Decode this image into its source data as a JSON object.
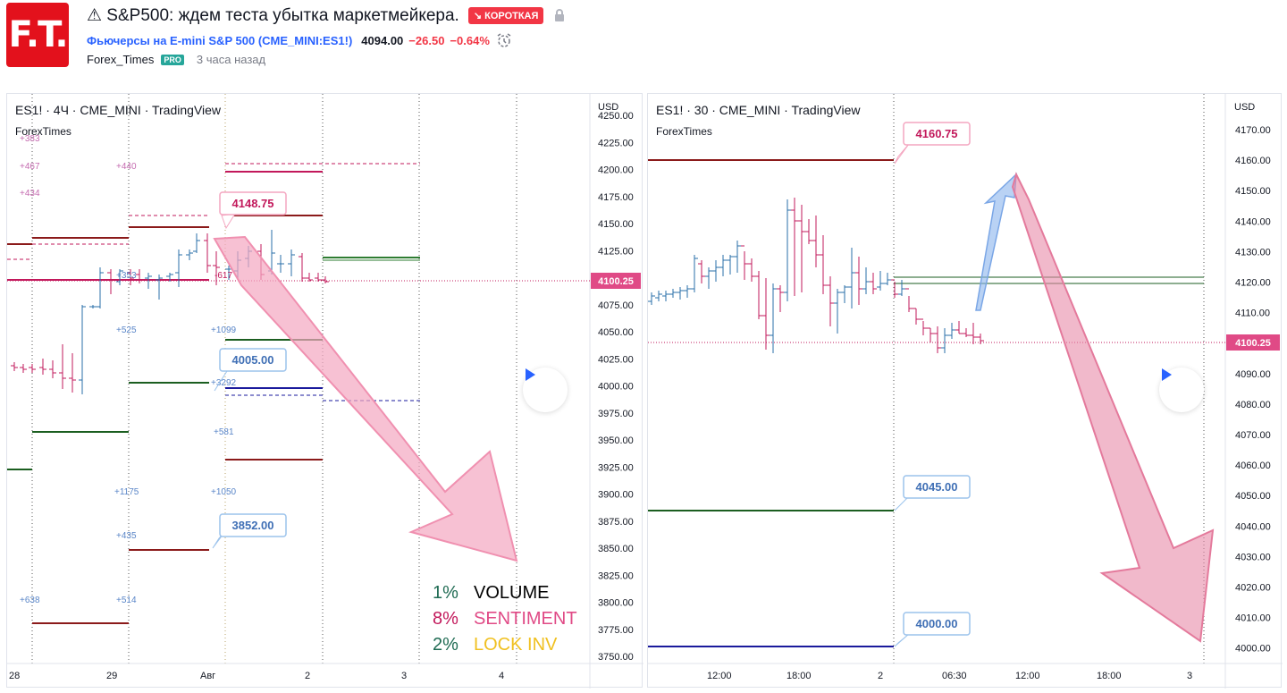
{
  "header": {
    "logo_text": "F.T.",
    "title": "⚠ S&P500: ждем теста убытка маркетмейкера.",
    "direction_badge": "↘ КОРОТКАЯ",
    "symbol_name": "Фьючерсы на E-mini S&P 500",
    "symbol_code_open": "(",
    "symbol_code": "CME_MINI:ES1!",
    "symbol_code_close": ")",
    "price": "4094.00",
    "change": "−26.50",
    "change_pct": "−0.64%",
    "author": "Forex_Times",
    "author_badge": "PRO",
    "time_ago": "3 часа назад",
    "icons": [
      "warning-icon",
      "lock-icon",
      "alarm-clock-icon"
    ],
    "colors": {
      "short": "#f23645",
      "link": "#2962ff",
      "pro": "#26a69a",
      "logo": "#e3111c"
    }
  },
  "left_chart": {
    "title": "ES1! · 4Ч · CME_MINI · TradingView",
    "subtitle": "ForexTimes",
    "currency": "USD",
    "price_ticks": [
      "4250.00",
      "4225.00",
      "4200.00",
      "4175.00",
      "4150.00",
      "4125.00",
      "4100.00",
      "4075.00",
      "4050.00",
      "4025.00",
      "4000.00",
      "3975.00",
      "3950.00",
      "3925.00",
      "3900.00",
      "3875.00",
      "3850.00",
      "3825.00",
      "3800.00",
      "3775.00",
      "3750.00"
    ],
    "last_price": "4100.25",
    "time_ticks": [
      "28",
      "29",
      "Авг",
      "2",
      "3",
      "4"
    ],
    "callouts": [
      "4148.75",
      "4005.00",
      "3852.00"
    ],
    "volume_labels": [
      "+383",
      "+467",
      "+434",
      "+440",
      "+353",
      "-617",
      "+525",
      "+1099",
      "+3292",
      "+581",
      "+1175",
      "+1050",
      "+435",
      "+638",
      "+514"
    ],
    "legend": [
      {
        "pct": "1%",
        "label": "VOLUME",
        "pct_color": "#1f6b53",
        "label_color": "#000000"
      },
      {
        "pct": "8%",
        "label": "SENTIMENT",
        "pct_color": "#c2185b",
        "label_color": "#e04a86"
      },
      {
        "pct": "2%",
        "label": "LOCK INV",
        "pct_color": "#1f6b53",
        "label_color": "#f0c020"
      }
    ]
  },
  "right_chart": {
    "title": "ES1! · 30 · CME_MINI · TradingView",
    "subtitle": "ForexTimes",
    "currency": "USD",
    "price_ticks": [
      "4170.00",
      "4160.00",
      "4150.00",
      "4140.00",
      "4130.00",
      "4120.00",
      "4110.00",
      "4100.00",
      "4090.00",
      "4080.00",
      "4070.00",
      "4060.00",
      "4050.00",
      "4040.00",
      "4030.00",
      "4020.00",
      "4010.00",
      "4000.00"
    ],
    "last_price": "4100.25",
    "time_ticks": [
      "12:00",
      "18:00",
      "2",
      "06:30",
      "12:00",
      "18:00",
      "3"
    ],
    "callouts": [
      "4160.75",
      "4045.00",
      "4000.00"
    ]
  }
}
